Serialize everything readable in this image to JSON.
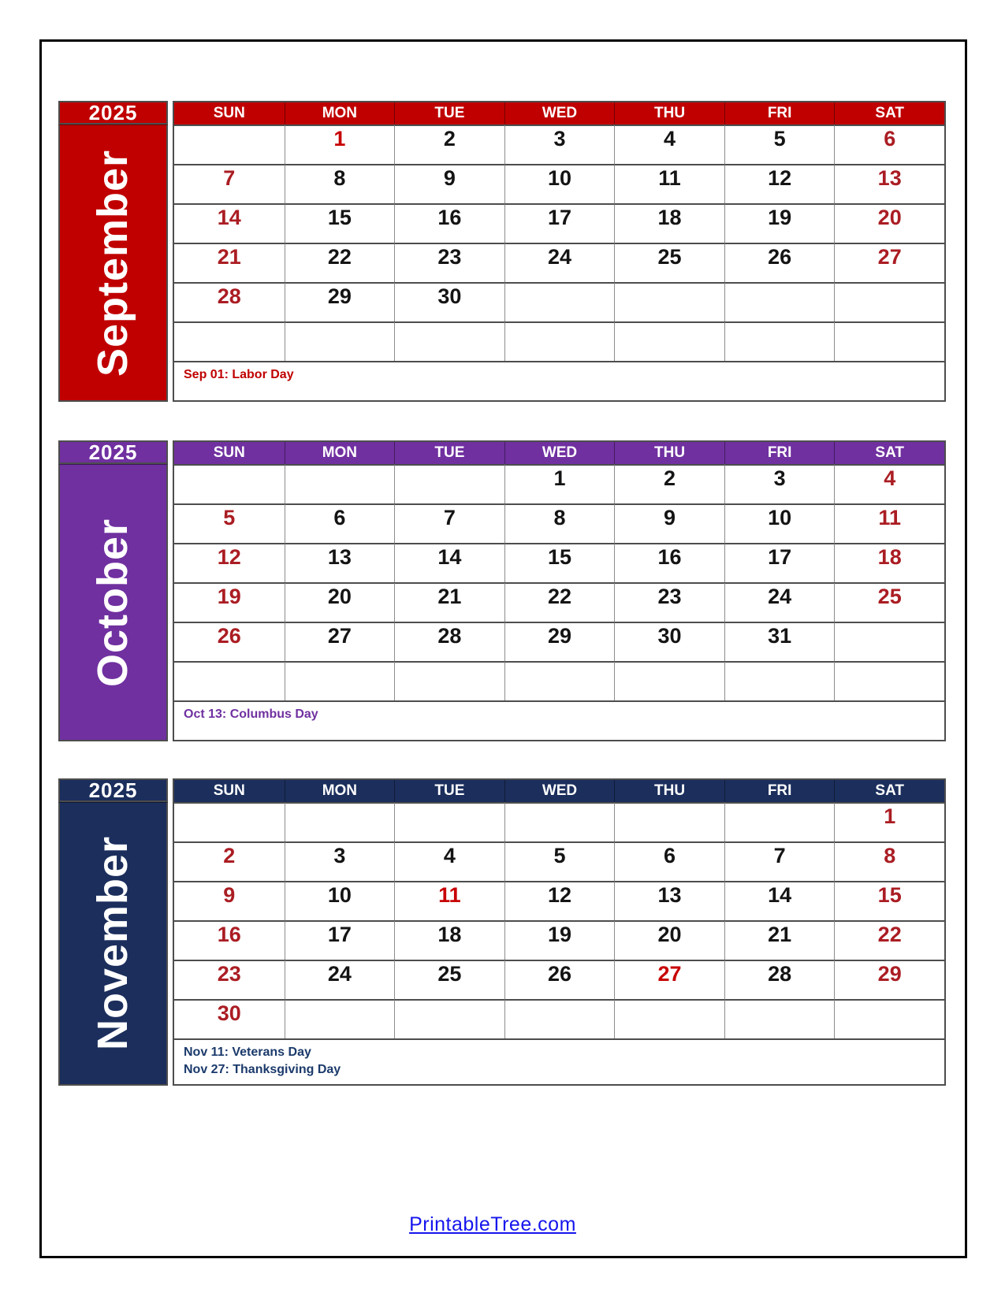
{
  "colors": {
    "weekend": "#AA1D23",
    "holiday": "#C70000",
    "weekday": "#141414",
    "link": "#1515ee"
  },
  "weekday_headers": [
    "SUN",
    "MON",
    "TUE",
    "WED",
    "THU",
    "FRI",
    "SAT"
  ],
  "months": [
    {
      "name": "September",
      "year": "2025",
      "theme": "#C00000",
      "note_color": "#C00000",
      "notes": [
        "Sep 01: Labor Day"
      ],
      "holidays": [
        1
      ],
      "weeks": [
        [
          null,
          1,
          2,
          3,
          4,
          5,
          6
        ],
        [
          7,
          8,
          9,
          10,
          11,
          12,
          13
        ],
        [
          14,
          15,
          16,
          17,
          18,
          19,
          20
        ],
        [
          21,
          22,
          23,
          24,
          25,
          26,
          27
        ],
        [
          28,
          29,
          30,
          null,
          null,
          null,
          null
        ],
        [
          null,
          null,
          null,
          null,
          null,
          null,
          null
        ]
      ]
    },
    {
      "name": "October",
      "year": "2025",
      "theme": "#7030A0",
      "note_color": "#7030A0",
      "notes": [
        "Oct 13: Columbus Day"
      ],
      "holidays": [],
      "weeks": [
        [
          null,
          null,
          null,
          1,
          2,
          3,
          4
        ],
        [
          5,
          6,
          7,
          8,
          9,
          10,
          11
        ],
        [
          12,
          13,
          14,
          15,
          16,
          17,
          18
        ],
        [
          19,
          20,
          21,
          22,
          23,
          24,
          25
        ],
        [
          26,
          27,
          28,
          29,
          30,
          31,
          null
        ],
        [
          null,
          null,
          null,
          null,
          null,
          null,
          null
        ]
      ]
    },
    {
      "name": "November",
      "year": "2025",
      "theme": "#1B2E5C",
      "note_color": "#1B3A6B",
      "notes": [
        "Nov 11: Veterans Day",
        "Nov 27: Thanksgiving Day"
      ],
      "holidays": [
        11,
        27
      ],
      "weeks": [
        [
          null,
          null,
          null,
          null,
          null,
          null,
          1
        ],
        [
          2,
          3,
          4,
          5,
          6,
          7,
          8
        ],
        [
          9,
          10,
          11,
          12,
          13,
          14,
          15
        ],
        [
          16,
          17,
          18,
          19,
          20,
          21,
          22
        ],
        [
          23,
          24,
          25,
          26,
          27,
          28,
          29
        ],
        [
          30,
          null,
          null,
          null,
          null,
          null,
          null
        ]
      ]
    }
  ],
  "footer": {
    "link_text": "PrintableTree.com"
  }
}
